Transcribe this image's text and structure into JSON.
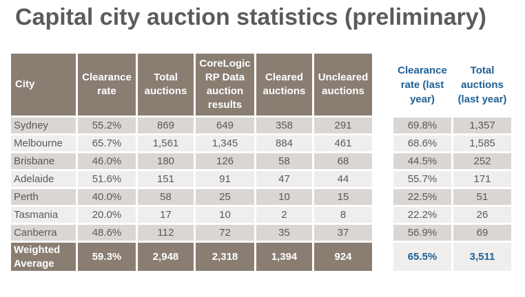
{
  "title": "Capital city auction statistics (preliminary)",
  "main_headers": {
    "city": "City",
    "clearance_rate": "Clearance rate",
    "total_auctions": "Total auctions",
    "corelogic": "CoreLogic RP Data auction results",
    "cleared": "Cleared auctions",
    "uncleared": "Uncleared auctions"
  },
  "last_year_headers": {
    "clearance_rate": "Clearance rate (last year)",
    "total_auctions": "Total auctions (last year)"
  },
  "rows": [
    {
      "city": "Sydney",
      "clearance_rate": "55.2%",
      "total": "869",
      "corelogic": "649",
      "cleared": "358",
      "uncleared": "291",
      "ly_rate": "69.8%",
      "ly_total": "1,357"
    },
    {
      "city": "Melbourne",
      "clearance_rate": "65.7%",
      "total": "1,561",
      "corelogic": "1,345",
      "cleared": "884",
      "uncleared": "461",
      "ly_rate": "68.6%",
      "ly_total": "1,585"
    },
    {
      "city": "Brisbane",
      "clearance_rate": "46.0%",
      "total": "180",
      "corelogic": "126",
      "cleared": "58",
      "uncleared": "68",
      "ly_rate": "44.5%",
      "ly_total": "252"
    },
    {
      "city": "Adelaide",
      "clearance_rate": "51.6%",
      "total": "151",
      "corelogic": "91",
      "cleared": "47",
      "uncleared": "44",
      "ly_rate": "55.7%",
      "ly_total": "171"
    },
    {
      "city": "Perth",
      "clearance_rate": "40.0%",
      "total": "58",
      "corelogic": "25",
      "cleared": "10",
      "uncleared": "15",
      "ly_rate": "22.5%",
      "ly_total": "51"
    },
    {
      "city": "Tasmania",
      "clearance_rate": "20.0%",
      "total": "17",
      "corelogic": "10",
      "cleared": "2",
      "uncleared": "8",
      "ly_rate": "22.2%",
      "ly_total": "26"
    },
    {
      "city": "Canberra",
      "clearance_rate": "48.6%",
      "total": "112",
      "corelogic": "72",
      "cleared": "35",
      "uncleared": "37",
      "ly_rate": "56.9%",
      "ly_total": "69"
    }
  ],
  "average": {
    "label_line1": "Weighted",
    "label_line2": "Average",
    "clearance_rate": "59.3%",
    "total": "2,948",
    "corelogic": "2,318",
    "cleared": "1,394",
    "uncleared": "924",
    "ly_rate": "65.5%",
    "ly_total": "3,511"
  },
  "colors": {
    "header_bg": "#8a7e73",
    "row_odd": "#d9d6d4",
    "row_even": "#efeeed",
    "last_year_text": "#1f5f94",
    "title_text": "#5b5b5b"
  }
}
